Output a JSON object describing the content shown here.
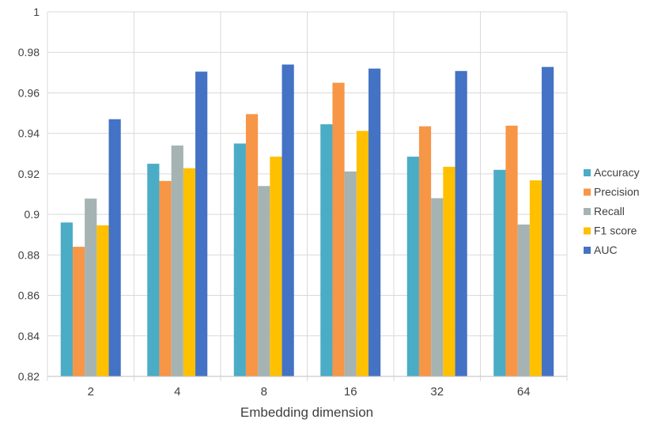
{
  "chart_data": {
    "type": "bar",
    "title": "",
    "xlabel": "Embedding dimension",
    "ylabel": "",
    "ylim": [
      0.82,
      1
    ],
    "yticks": [
      "0.82",
      "0.84",
      "0.86",
      "0.88",
      "0.9",
      "0.92",
      "0.94",
      "0.96",
      "0.98",
      "1"
    ],
    "categories": [
      "2",
      "4",
      "8",
      "16",
      "32",
      "64"
    ],
    "grid": true,
    "legend_position": "right",
    "series": [
      {
        "name": "Accuracy",
        "color": "#4bacc6",
        "values": [
          0.896,
          0.925,
          0.935,
          0.9445,
          0.9285,
          0.922
        ]
      },
      {
        "name": "Precision",
        "color": "#f79646",
        "values": [
          0.884,
          0.9165,
          0.9495,
          0.965,
          0.9435,
          0.9438
        ]
      },
      {
        "name": "Recall",
        "color": "#a5b3b3",
        "values": [
          0.9078,
          0.934,
          0.914,
          0.9212,
          0.908,
          0.895
        ]
      },
      {
        "name": "F1 score",
        "color": "#ffc000",
        "values": [
          0.8946,
          0.9228,
          0.9285,
          0.9412,
          0.9235,
          0.9168
        ]
      },
      {
        "name": "AUC",
        "color": "#4472c4",
        "values": [
          0.947,
          0.9705,
          0.974,
          0.972,
          0.9708,
          0.9728
        ]
      }
    ]
  }
}
